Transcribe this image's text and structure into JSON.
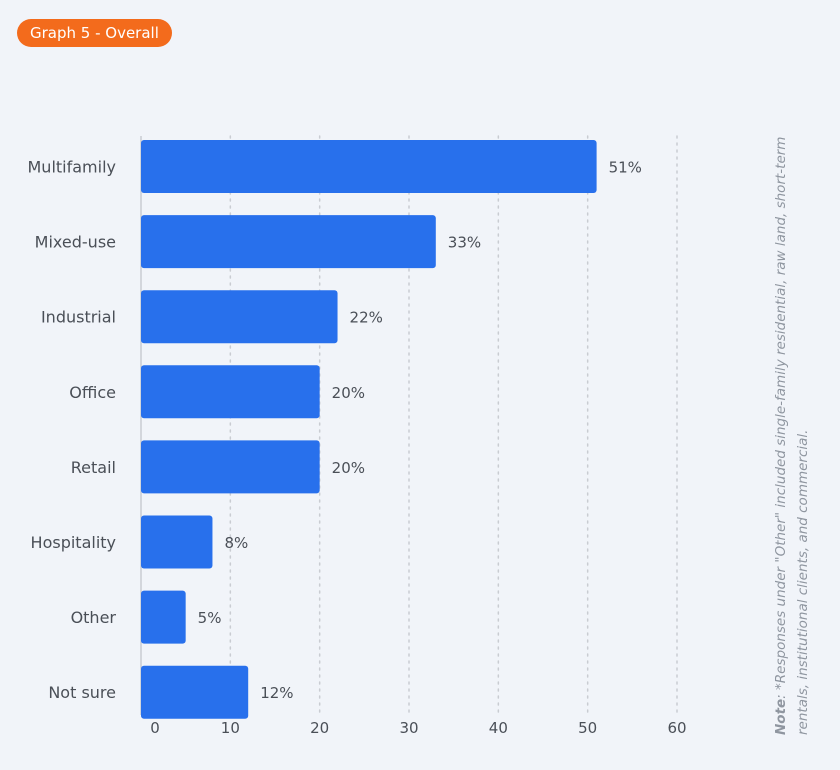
{
  "badge": {
    "label": "Graph 5 - Overall"
  },
  "note": {
    "label": "Note",
    "text": ": *Responses under \"Other\" included single-family residential, raw land, short-term rentals, institutional clients, and commercial."
  },
  "colors": {
    "bar": "#2870ec",
    "badge": "#f36b1c",
    "background": "#f1f4f9",
    "grid": "#c9ccd2",
    "axis_text": "#4a4f57"
  },
  "chart_data": {
    "type": "bar",
    "orientation": "horizontal",
    "categories": [
      "Multifamily",
      "Mixed-use",
      "Industrial",
      "Office",
      "Retail",
      "Hospitality",
      "Other",
      "Not sure"
    ],
    "values": [
      51,
      33,
      22,
      20,
      20,
      8,
      5,
      12
    ],
    "value_labels": [
      "51%",
      "33%",
      "22%",
      "20%",
      "20%",
      "8%",
      "5%",
      "12%"
    ],
    "xlim": [
      0,
      60
    ],
    "xticks": [
      0,
      10,
      20,
      30,
      40,
      50,
      60
    ],
    "grid": "vertical dotted",
    "title": "",
    "xlabel": "",
    "ylabel": ""
  }
}
